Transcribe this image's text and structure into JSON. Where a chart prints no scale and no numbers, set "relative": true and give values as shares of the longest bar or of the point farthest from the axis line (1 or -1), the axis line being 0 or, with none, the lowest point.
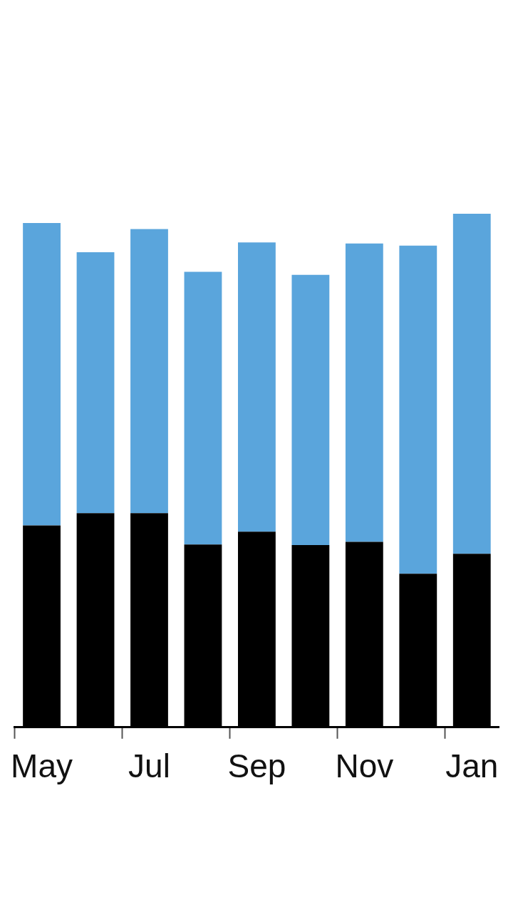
{
  "chart_data": {
    "type": "bar",
    "stacked": true,
    "relative": true,
    "categories": [
      "May",
      null,
      "Jul",
      null,
      "Sep",
      null,
      "Nov",
      null,
      "Jan"
    ],
    "series": [
      {
        "color": "#000000",
        "values": [
          0.393,
          0.417,
          0.417,
          0.356,
          0.381,
          0.355,
          0.361,
          0.299,
          0.338
        ]
      },
      {
        "color": "#5aa5dc",
        "values": [
          0.589,
          0.508,
          0.553,
          0.531,
          0.563,
          0.526,
          0.581,
          0.639,
          0.662
        ]
      }
    ]
  }
}
